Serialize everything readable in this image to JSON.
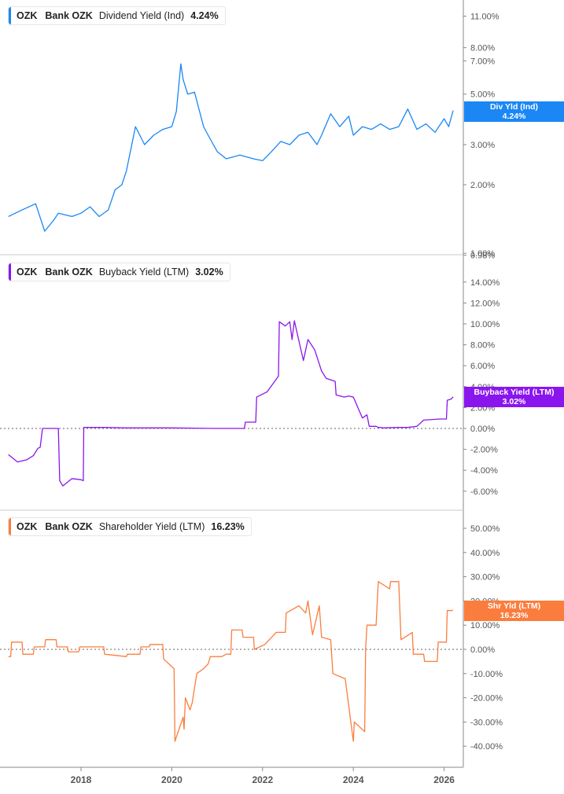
{
  "chart_data": [
    {
      "type": "line",
      "title": "OZK Bank OZK Dividend Yield (Ind)",
      "ticker": "OZK",
      "company": "Bank OZK",
      "metric": "Dividend Yield (Ind)",
      "current_value": "4.24%",
      "tag_label": "Div Yld (Ind)",
      "color": "#1a87f5",
      "yscale": "log",
      "ylim": [
        0.98,
        12.5
      ],
      "yticks": [
        "11.00%",
        "8.00%",
        "7.00%",
        "5.00%",
        "3.00%",
        "2.00%",
        "1.00%",
        "0.98%"
      ],
      "x": [
        2016.4,
        2016.7,
        2017.0,
        2017.2,
        2017.4,
        2017.5,
        2017.8,
        2018.0,
        2018.2,
        2018.4,
        2018.6,
        2018.75,
        2018.9,
        2019.0,
        2019.2,
        2019.4,
        2019.6,
        2019.8,
        2020.0,
        2020.1,
        2020.2,
        2020.25,
        2020.35,
        2020.5,
        2020.7,
        2020.8,
        2021.0,
        2021.2,
        2021.5,
        2021.8,
        2022.0,
        2022.2,
        2022.4,
        2022.6,
        2022.8,
        2023.0,
        2023.2,
        2023.3,
        2023.5,
        2023.7,
        2023.9,
        2024.0,
        2024.2,
        2024.4,
        2024.6,
        2024.8,
        2025.0,
        2025.2,
        2025.4,
        2025.6,
        2025.8,
        2026.0,
        2026.1,
        2026.2
      ],
      "values": [
        1.45,
        1.55,
        1.65,
        1.25,
        1.4,
        1.5,
        1.45,
        1.5,
        1.6,
        1.45,
        1.55,
        1.9,
        2.0,
        2.3,
        3.6,
        3.0,
        3.3,
        3.5,
        3.6,
        4.2,
        6.8,
        5.8,
        5.0,
        5.1,
        3.6,
        3.3,
        2.8,
        2.6,
        2.7,
        2.6,
        2.55,
        2.8,
        3.1,
        3.0,
        3.3,
        3.4,
        3.0,
        3.3,
        4.1,
        3.6,
        4.0,
        3.3,
        3.6,
        3.5,
        3.7,
        3.5,
        3.6,
        4.3,
        3.5,
        3.7,
        3.4,
        3.9,
        3.6,
        4.24
      ],
      "xticks": [
        "2018",
        "2020",
        "2022",
        "2024",
        "2026"
      ]
    },
    {
      "type": "line",
      "title": "OZK Bank OZK Buyback Yield (LTM)",
      "ticker": "OZK",
      "company": "Bank OZK",
      "metric": "Buyback Yield (LTM)",
      "current_value": "3.02%",
      "tag_label": "Buyback Yield (LTM)",
      "color": "#8a16ee",
      "ylim": [
        -7,
        15
      ],
      "yticks": [
        "14.00%",
        "12.00%",
        "10.00%",
        "8.00%",
        "6.00%",
        "4.00%",
        "2.00%",
        "0.00%",
        "-2.00%",
        "-4.00%",
        "-6.00%"
      ],
      "x": [
        2016.4,
        2016.6,
        2016.8,
        2016.95,
        2017.05,
        2017.1,
        2017.15,
        2017.2,
        2017.5,
        2017.53,
        2017.6,
        2017.8,
        2018.0,
        2018.05,
        2018.06,
        2018.5,
        2019.0,
        2020.0,
        2021.0,
        2021.6,
        2021.62,
        2021.85,
        2021.87,
        2022.1,
        2022.35,
        2022.37,
        2022.5,
        2022.6,
        2022.65,
        2022.7,
        2022.9,
        2023.0,
        2023.15,
        2023.3,
        2023.4,
        2023.6,
        2023.62,
        2023.8,
        2023.9,
        2024.0,
        2024.2,
        2024.3,
        2024.35,
        2024.5,
        2024.55,
        2024.6,
        2024.65,
        2025.0,
        2025.2,
        2025.4,
        2025.55,
        2025.9,
        2026.05,
        2026.07,
        2026.15,
        2026.2
      ],
      "values": [
        -2.5,
        -3.2,
        -3.0,
        -2.6,
        -1.9,
        -1.8,
        0,
        0,
        0,
        -5.0,
        -5.5,
        -4.8,
        -4.9,
        -5.0,
        0.1,
        0.1,
        0.05,
        0.05,
        0.0,
        0.0,
        0.6,
        0.6,
        3.0,
        3.5,
        5.0,
        10.2,
        9.8,
        10.2,
        8.5,
        10.3,
        6.5,
        8.5,
        7.5,
        5.5,
        4.8,
        4.5,
        3.2,
        3.0,
        3.1,
        3.0,
        1.0,
        1.3,
        0.2,
        0.2,
        0.1,
        0.1,
        0.05,
        0.1,
        0.1,
        0.2,
        0.8,
        0.9,
        0.9,
        2.7,
        2.8,
        3.02
      ],
      "xticks": [
        "2018",
        "2020",
        "2022",
        "2024",
        "2026"
      ]
    },
    {
      "type": "line",
      "title": "OZK Bank OZK Shareholder Yield (LTM)",
      "ticker": "OZK",
      "company": "Bank OZK",
      "metric": "Shareholder Yield (LTM)",
      "current_value": "16.23%",
      "tag_label": "Shr Yld (LTM)",
      "color": "#fb7d3e",
      "ylim": [
        -47,
        57
      ],
      "yticks": [
        "50.00%",
        "40.00%",
        "30.00%",
        "20.00%",
        "10.00%",
        "0.00%",
        "-10.00%",
        "-20.00%",
        "-30.00%",
        "-40.00%"
      ],
      "x": [
        2016.4,
        2016.45,
        2016.47,
        2016.7,
        2016.72,
        2016.95,
        2016.97,
        2017.2,
        2017.22,
        2017.45,
        2017.47,
        2017.7,
        2017.72,
        2017.95,
        2017.97,
        2018.5,
        2018.52,
        2019.0,
        2019.02,
        2019.3,
        2019.32,
        2019.5,
        2019.52,
        2019.8,
        2019.82,
        2020.05,
        2020.07,
        2020.25,
        2020.27,
        2020.3,
        2020.4,
        2020.45,
        2020.55,
        2020.7,
        2020.8,
        2020.85,
        2021.1,
        2021.2,
        2021.3,
        2021.32,
        2021.55,
        2021.57,
        2021.8,
        2021.82,
        2022.05,
        2022.3,
        2022.5,
        2022.52,
        2022.8,
        2022.95,
        2023.0,
        2023.1,
        2023.25,
        2023.3,
        2023.5,
        2023.55,
        2023.8,
        2023.82,
        2024.0,
        2024.02,
        2024.25,
        2024.27,
        2024.3,
        2024.5,
        2024.55,
        2024.8,
        2024.82,
        2025.0,
        2025.05,
        2025.3,
        2025.32,
        2025.55,
        2025.57,
        2025.85,
        2025.87,
        2026.05,
        2026.07,
        2026.15,
        2026.2
      ],
      "values": [
        -3,
        -3,
        3,
        3,
        -2,
        -2,
        1,
        1,
        4,
        4,
        1,
        1,
        -1,
        -1,
        1,
        1,
        -2,
        -3,
        -2,
        -2,
        1,
        1,
        2,
        2,
        -4,
        -8,
        -38,
        -28,
        -33,
        -20,
        -25,
        -22,
        -10,
        -8,
        -6,
        -3,
        -3,
        -2,
        -2,
        8,
        8,
        5,
        5,
        0,
        2,
        7,
        7,
        15,
        18,
        15,
        20,
        6,
        18,
        5,
        4,
        -10,
        -12,
        -12,
        -38,
        -30,
        -34,
        0,
        10,
        10,
        28,
        25,
        28,
        28,
        4,
        7,
        -2,
        -2,
        -5,
        -5,
        3,
        3,
        16,
        16,
        16.23
      ],
      "xticks": [
        "2018",
        "2020",
        "2022",
        "2024",
        "2026"
      ]
    }
  ],
  "panels": [
    {
      "legend": {
        "ticker": "OZK",
        "company": "Bank OZK",
        "metric": "Dividend Yield (Ind)",
        "value": "4.24%"
      },
      "tag": {
        "label": "Div Yld (Ind)",
        "value": "4.24%"
      }
    },
    {
      "legend": {
        "ticker": "OZK",
        "company": "Bank OZK",
        "metric": "Buyback Yield (LTM)",
        "value": "3.02%"
      },
      "tag": {
        "label": "Buyback Yield (LTM)",
        "value": "3.02%"
      }
    },
    {
      "legend": {
        "ticker": "OZK",
        "company": "Bank OZK",
        "metric": "Shareholder Yield (LTM)",
        "value": "16.23%"
      },
      "tag": {
        "label": "Shr Yld (LTM)",
        "value": "16.23%"
      }
    }
  ],
  "x_axis": {
    "ticks": [
      "2018",
      "2020",
      "2022",
      "2024",
      "2026"
    ]
  },
  "colors": {
    "dividend": "#1a87f5",
    "buyback": "#8a16ee",
    "shareholder": "#fb7d3e",
    "axis": "#b0b0b0",
    "tick_text": "#555555"
  }
}
